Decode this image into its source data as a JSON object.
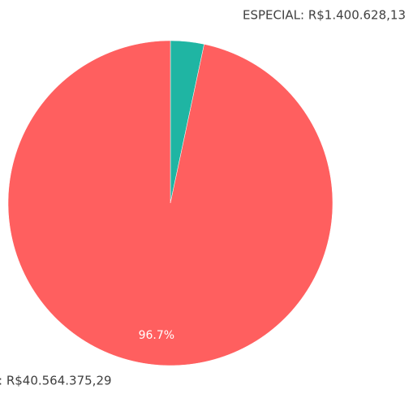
{
  "chart_data": {
    "type": "pie",
    "values": [
      1400628.13,
      40564375.29
    ],
    "value_labels": [
      "ESPECIAL: R$1.400.628,13",
      ": R$40.564.375,29"
    ],
    "percent_labels": [
      null,
      "96.7%"
    ],
    "colors": [
      "#1fb5a3",
      "#ff5f5f"
    ]
  }
}
